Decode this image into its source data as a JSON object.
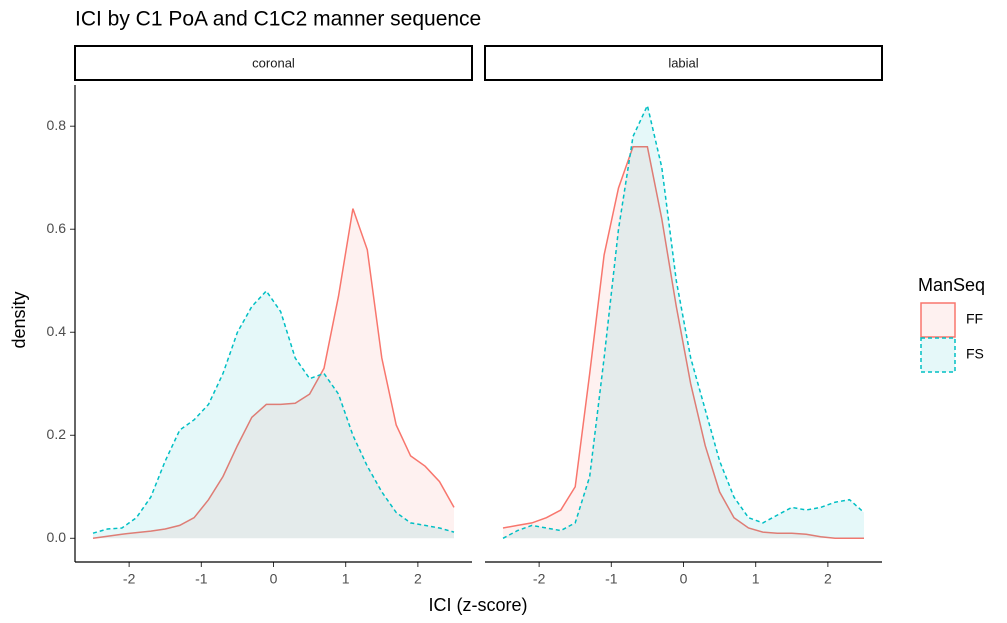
{
  "chart_data": {
    "type": "density",
    "title": "ICI by C1 PoA and C1C2 manner sequence",
    "xlabel": "ICI (z-score)",
    "ylabel": "density",
    "legend_title": "ManSeq",
    "series": [
      {
        "name": "FF",
        "color": "#f8766d",
        "dashed": false
      },
      {
        "name": "FS",
        "color": "#00bfc4",
        "dashed": true
      }
    ],
    "x": [
      -2.5,
      -2.3,
      -2.1,
      -1.9,
      -1.7,
      -1.5,
      -1.3,
      -1.1,
      -0.9,
      -0.7,
      -0.5,
      -0.3,
      -0.1,
      0.1,
      0.3,
      0.5,
      0.7,
      0.9,
      1.1,
      1.3,
      1.5,
      1.7,
      1.9,
      2.1,
      2.3,
      2.5
    ],
    "xlim": [
      -2.75,
      2.75
    ],
    "xticks": [
      -2,
      -1,
      0,
      1,
      2
    ],
    "ylim": [
      -0.046,
      0.88
    ],
    "yticks": [
      {
        "value": 0,
        "label": "0.0"
      },
      0.2,
      0.4,
      0.6,
      0.8
    ],
    "facets": [
      {
        "label": "coronal",
        "values": [
          [
            0.0,
            0.004,
            0.008,
            0.011,
            0.014,
            0.018,
            0.025,
            0.04,
            0.075,
            0.12,
            0.18,
            0.235,
            0.26,
            0.26,
            0.262,
            0.28,
            0.33,
            0.47,
            0.64,
            0.56,
            0.35,
            0.22,
            0.16,
            0.14,
            0.11,
            0.06
          ],
          [
            0.01,
            0.018,
            0.02,
            0.04,
            0.08,
            0.15,
            0.21,
            0.23,
            0.26,
            0.32,
            0.4,
            0.45,
            0.48,
            0.44,
            0.35,
            0.31,
            0.32,
            0.28,
            0.2,
            0.14,
            0.09,
            0.05,
            0.03,
            0.025,
            0.02,
            0.012
          ]
        ]
      },
      {
        "label": "labial",
        "values": [
          [
            0.02,
            0.025,
            0.03,
            0.04,
            0.055,
            0.1,
            0.32,
            0.55,
            0.68,
            0.76,
            0.76,
            0.62,
            0.45,
            0.3,
            0.18,
            0.09,
            0.04,
            0.02,
            0.012,
            0.01,
            0.01,
            0.008,
            0.003,
            0.0,
            0.0,
            0.0
          ],
          [
            0.0,
            0.015,
            0.025,
            0.02,
            0.015,
            0.03,
            0.12,
            0.35,
            0.6,
            0.78,
            0.84,
            0.72,
            0.5,
            0.35,
            0.25,
            0.15,
            0.08,
            0.04,
            0.03,
            0.045,
            0.06,
            0.055,
            0.06,
            0.07,
            0.075,
            0.05
          ]
        ]
      }
    ]
  }
}
